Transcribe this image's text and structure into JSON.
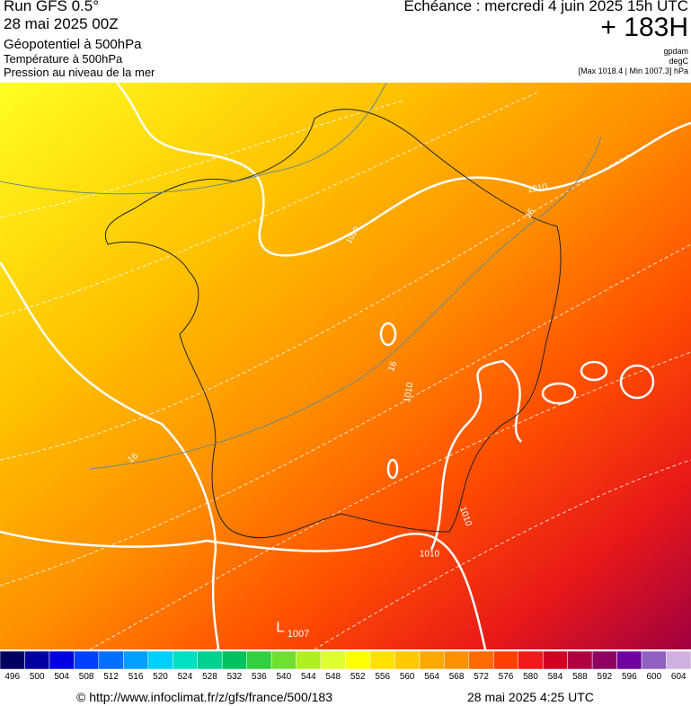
{
  "header": {
    "run": "Run GFS 0.5°",
    "run_date": "28 mai 2025 00Z",
    "field1": "Géopotentiel à 500hPa",
    "field2": "Température à 500hPa",
    "field3": "Pression au niveau de la mer",
    "forecast": "Echéance : mercredi 4 juin 2025 15h UTC",
    "lead": "+ 183H",
    "unit1": "gpdam",
    "unit2": "degC",
    "pressure_range": "[Max 1018.4 | Min 1007.3] hPa"
  },
  "map": {
    "labels": [
      "1010",
      "1010",
      "16",
      "16",
      "1010",
      "16",
      "1010",
      "1010",
      "L",
      "1007"
    ]
  },
  "colorbar": {
    "values": [
      496,
      500,
      504,
      508,
      512,
      516,
      520,
      524,
      528,
      532,
      536,
      540,
      544,
      548,
      552,
      556,
      560,
      564,
      568,
      572,
      576,
      580,
      584,
      588,
      592,
      596,
      600,
      604
    ],
    "colors": [
      "#000060",
      "#0000a0",
      "#0000e0",
      "#0040ff",
      "#0070ff",
      "#00a0ff",
      "#00d0ff",
      "#00e0c0",
      "#00d090",
      "#00c060",
      "#30d040",
      "#70e030",
      "#b0f020",
      "#e0ff30",
      "#ffff00",
      "#ffe000",
      "#ffc800",
      "#ffa800",
      "#ff9000",
      "#ff6a00",
      "#ff4000",
      "#f01818",
      "#d00020",
      "#b00040",
      "#900060",
      "#7000a0",
      "#9060c0",
      "#d0b0e0"
    ]
  },
  "footer": {
    "source": "© http://www.infoclimat.fr/z/gfs/france/500/183",
    "generated": "28 mai 2025  4:25 UTC"
  }
}
